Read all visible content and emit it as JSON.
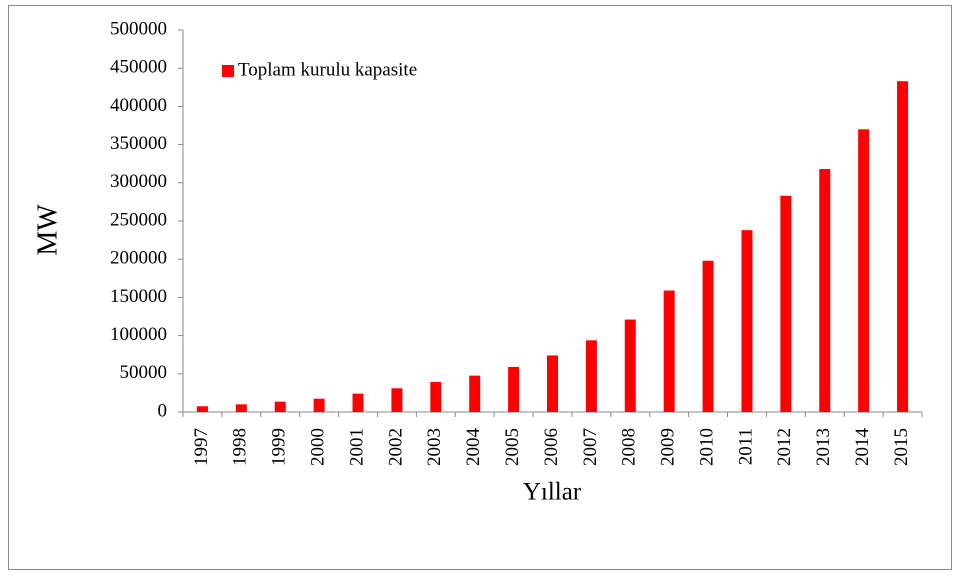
{
  "chart_data": {
    "type": "bar",
    "x_label": "Yıllar",
    "y_label": "MW",
    "categories": [
      "1997",
      "1998",
      "1999",
      "2000",
      "2001",
      "2002",
      "2003",
      "2004",
      "2005",
      "2006",
      "2007",
      "2008",
      "2009",
      "2010",
      "2011",
      "2012",
      "2013",
      "2014",
      "2015"
    ],
    "series": [
      {
        "name": "Toplam kurulu kapasite",
        "color": "#ff0000",
        "values": [
          7500,
          10000,
          13500,
          17400,
          24000,
          31000,
          39400,
          47600,
          59000,
          74000,
          93800,
          121000,
          159000,
          198000,
          238000,
          283000,
          318000,
          370000,
          433000
        ]
      }
    ],
    "ylim": [
      0,
      500000
    ],
    "yticks": [
      0,
      50000,
      100000,
      150000,
      200000,
      250000,
      300000,
      350000,
      400000,
      450000,
      500000
    ],
    "grid": false,
    "legend": "top-left"
  }
}
